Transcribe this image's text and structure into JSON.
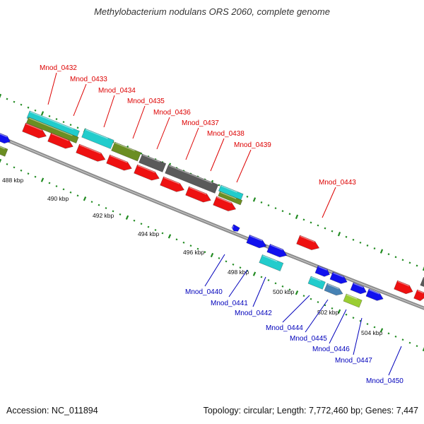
{
  "title": "Methylobacterium nodulans ORS 2060, complete genome",
  "accession": "Accession: NC_011894",
  "summary": "Topology: circular; Length: 7,772,460 bp; Genes: 7,447",
  "colors": {
    "red": "#ee1111",
    "blue": "#1111ee",
    "cyan": "#22cccc",
    "olive": "#6b8e23",
    "gray": "#5a5a5a",
    "steelblue": "#4682b4",
    "lime": "#9acd32",
    "backbone": "#888888",
    "tick": "#228b22"
  },
  "kbp_labels": [
    "488 kbp",
    "490 kbp",
    "492 kbp",
    "494 kbp",
    "496 kbp",
    "498 kbp",
    "500 kbp",
    "502 kbp",
    "504 kbp"
  ],
  "upper_labels": [
    "Mnod_0432",
    "Mnod_0433",
    "Mnod_0434",
    "Mnod_0435",
    "Mnod_0436",
    "Mnod_0437",
    "Mnod_0438",
    "Mnod_0439",
    "Mnod_0443"
  ],
  "lower_labels": [
    "Mnod_0440",
    "Mnod_0441",
    "Mnod_0442",
    "Mnod_0444",
    "Mnod_0445",
    "Mnod_0446",
    "Mnod_0447",
    "Mnod_0450"
  ]
}
